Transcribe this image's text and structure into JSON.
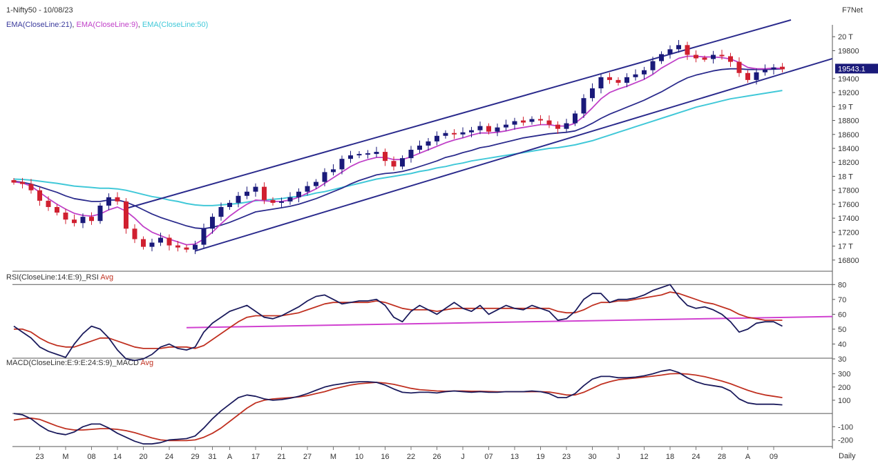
{
  "header": {
    "symbol": "1-Nifty50 - 10/08/23",
    "brand": "F7Net",
    "ema_legend": [
      {
        "text": "EMA(CloseLine:21)",
        "color": "#3a3a9c"
      },
      {
        "text": "EMA(CloseLine:9)",
        "color": "#c040c8"
      },
      {
        "text": "EMA(CloseLine:50)",
        "color": "#40c8d8"
      }
    ],
    "legend_sep": ", ",
    "rsi_title": "RSI(CloseLine:14:E:9)_RSI",
    "rsi_avg": "Avg",
    "macd_title": "MACD(CloseLine:E:9:E:24:S:9)_MACD",
    "macd_avg": "Avg",
    "period": "Daily"
  },
  "colors": {
    "up": "#1a1a7a",
    "down": "#d02030",
    "ema21": "#2a2a8c",
    "ema9": "#c040c8",
    "ema50": "#40c8d8",
    "channel": "#2a2a8c",
    "rsi": "#1a1a5c",
    "rsi_avg": "#c03020",
    "macd": "#1a1a5c",
    "macd_avg": "#c03020",
    "trend_rsi": "#d040d0",
    "price_tag_bg": "#1a1a7a"
  },
  "chart_data": [
    {
      "type": "candlestick",
      "panel": "price",
      "ylim": [
        16650,
        20150
      ],
      "yticks": [
        {
          "v": 20000,
          "t": "20 T"
        },
        {
          "v": 19800,
          "t": "19800"
        },
        {
          "v": 19400,
          "t": "19400"
        },
        {
          "v": 19200,
          "t": "19200"
        },
        {
          "v": 19000,
          "t": "19 T"
        },
        {
          "v": 18800,
          "t": "18800"
        },
        {
          "v": 18600,
          "t": "18600"
        },
        {
          "v": 18400,
          "t": "18400"
        },
        {
          "v": 18200,
          "t": "18200"
        },
        {
          "v": 18000,
          "t": "18 T"
        },
        {
          "v": 17800,
          "t": "17800"
        },
        {
          "v": 17600,
          "t": "17600"
        },
        {
          "v": 17400,
          "t": "17400"
        },
        {
          "v": 17200,
          "t": "17200"
        },
        {
          "v": 17000,
          "t": "17 T"
        },
        {
          "v": 16800,
          "t": "16800"
        }
      ],
      "last_price": "19543.1",
      "xticks": [
        {
          "i": 3,
          "t": "23"
        },
        {
          "i": 6,
          "t": "M"
        },
        {
          "i": 9,
          "t": "08"
        },
        {
          "i": 12,
          "t": "14"
        },
        {
          "i": 15,
          "t": "20"
        },
        {
          "i": 18,
          "t": "24"
        },
        {
          "i": 21,
          "t": "29"
        },
        {
          "i": 23,
          "t": "31"
        },
        {
          "i": 25,
          "t": "A"
        },
        {
          "i": 28,
          "t": "17"
        },
        {
          "i": 31,
          "t": "21"
        },
        {
          "i": 34,
          "t": "27"
        },
        {
          "i": 37,
          "t": "M"
        },
        {
          "i": 40,
          "t": "10"
        },
        {
          "i": 43,
          "t": "16"
        },
        {
          "i": 46,
          "t": "22"
        },
        {
          "i": 49,
          "t": "26"
        },
        {
          "i": 52,
          "t": "J"
        },
        {
          "i": 55,
          "t": "07"
        },
        {
          "i": 58,
          "t": "13"
        },
        {
          "i": 61,
          "t": "19"
        },
        {
          "i": 64,
          "t": "23"
        },
        {
          "i": 67,
          "t": "30"
        },
        {
          "i": 70,
          "t": "J"
        },
        {
          "i": 73,
          "t": "12"
        },
        {
          "i": 76,
          "t": "18"
        },
        {
          "i": 79,
          "t": "24"
        },
        {
          "i": 82,
          "t": "28"
        },
        {
          "i": 85,
          "t": "A"
        },
        {
          "i": 88,
          "t": "09"
        }
      ],
      "close": [
        17920,
        17890,
        17800,
        17650,
        17560,
        17480,
        17380,
        17330,
        17420,
        17360,
        17580,
        17700,
        17640,
        17250,
        17100,
        16990,
        17050,
        17120,
        17010,
        16980,
        16950,
        17020,
        17250,
        17420,
        17560,
        17620,
        17720,
        17780,
        17850,
        17660,
        17620,
        17640,
        17700,
        17780,
        17860,
        17920,
        18060,
        18100,
        18250,
        18300,
        18320,
        18320,
        18350,
        18220,
        18140,
        18260,
        18380,
        18440,
        18500,
        18580,
        18620,
        18600,
        18630,
        18660,
        18720,
        18640,
        18700,
        18740,
        18790,
        18780,
        18820,
        18800,
        18740,
        18680,
        18760,
        18900,
        19120,
        19260,
        19420,
        19380,
        19340,
        19420,
        19460,
        19520,
        19650,
        19750,
        19820,
        19880,
        19740,
        19690,
        19680,
        19740,
        19720,
        19640,
        19480,
        19380,
        19490,
        19530,
        19560,
        19543
      ],
      "ema9": [
        17920,
        17905,
        17860,
        17770,
        17680,
        17600,
        17530,
        17470,
        17440,
        17430,
        17460,
        17520,
        17560,
        17500,
        17400,
        17280,
        17200,
        17150,
        17100,
        17060,
        17020,
        17030,
        17100,
        17200,
        17320,
        17430,
        17520,
        17600,
        17660,
        17650,
        17640,
        17640,
        17660,
        17700,
        17760,
        17820,
        17900,
        17980,
        18060,
        18140,
        18200,
        18240,
        18270,
        18270,
        18240,
        18240,
        18280,
        18330,
        18380,
        18430,
        18480,
        18520,
        18550,
        18590,
        18620,
        18620,
        18630,
        18650,
        18680,
        18700,
        18720,
        18740,
        18740,
        18720,
        18720,
        18760,
        18860,
        18980,
        19110,
        19200,
        19250,
        19290,
        19340,
        19390,
        19460,
        19550,
        19620,
        19690,
        19720,
        19720,
        19710,
        19710,
        19700,
        19680,
        19630,
        19560,
        19540,
        19540,
        19550,
        19545
      ],
      "ema21": [
        17930,
        17915,
        17890,
        17850,
        17810,
        17770,
        17720,
        17680,
        17660,
        17640,
        17640,
        17660,
        17660,
        17630,
        17580,
        17520,
        17460,
        17410,
        17370,
        17330,
        17290,
        17260,
        17250,
        17270,
        17300,
        17340,
        17390,
        17440,
        17490,
        17510,
        17530,
        17550,
        17570,
        17600,
        17640,
        17680,
        17730,
        17780,
        17830,
        17890,
        17940,
        17980,
        18020,
        18040,
        18050,
        18070,
        18100,
        18140,
        18180,
        18220,
        18270,
        18300,
        18340,
        18370,
        18410,
        18430,
        18460,
        18490,
        18520,
        18550,
        18570,
        18590,
        18610,
        18620,
        18630,
        18650,
        18700,
        18760,
        18830,
        18890,
        18940,
        18990,
        19040,
        19090,
        19150,
        19210,
        19280,
        19350,
        19410,
        19450,
        19480,
        19510,
        19530,
        19540,
        19540,
        19530,
        19530,
        19530,
        19535,
        19540
      ],
      "ema50": [
        17960,
        17955,
        17945,
        17930,
        17915,
        17900,
        17880,
        17860,
        17850,
        17840,
        17830,
        17830,
        17820,
        17800,
        17770,
        17740,
        17710,
        17690,
        17660,
        17640,
        17610,
        17590,
        17580,
        17580,
        17590,
        17600,
        17610,
        17630,
        17650,
        17660,
        17670,
        17680,
        17700,
        17710,
        17730,
        17760,
        17780,
        17810,
        17840,
        17870,
        17900,
        17930,
        17960,
        17980,
        18000,
        18020,
        18040,
        18070,
        18090,
        18120,
        18140,
        18170,
        18190,
        18220,
        18240,
        18260,
        18280,
        18300,
        18320,
        18340,
        18360,
        18380,
        18400,
        18410,
        18430,
        18450,
        18480,
        18510,
        18550,
        18590,
        18630,
        18670,
        18710,
        18750,
        18790,
        18830,
        18870,
        18910,
        18950,
        18990,
        19020,
        19050,
        19080,
        19110,
        19130,
        19150,
        19170,
        19190,
        19210,
        19230
      ],
      "channel_upper": [
        [
          13,
          17540
        ],
        [
          90,
          20240
        ]
      ],
      "channel_lower": [
        [
          21,
          16930
        ],
        [
          100,
          19880
        ]
      ]
    },
    {
      "type": "line",
      "panel": "rsi",
      "ylim": [
        30,
        82
      ],
      "yticks": [
        80,
        70,
        60,
        50,
        40,
        30
      ],
      "series": [
        {
          "name": "RSI",
          "values": [
            52,
            48,
            44,
            38,
            35,
            33,
            31,
            40,
            47,
            52,
            50,
            44,
            36,
            30,
            29,
            30,
            33,
            38,
            40,
            37,
            36,
            38,
            48,
            54,
            58,
            62,
            64,
            66,
            62,
            58,
            57,
            59,
            62,
            65,
            69,
            72,
            73,
            70,
            67,
            68,
            69,
            69,
            70,
            66,
            58,
            55,
            62,
            66,
            63,
            60,
            64,
            68,
            64,
            62,
            66,
            60,
            63,
            66,
            64,
            63,
            66,
            64,
            62,
            56,
            57,
            62,
            70,
            74,
            74,
            68,
            70,
            70,
            71,
            73,
            76,
            78,
            80,
            72,
            66,
            64,
            65,
            63,
            60,
            55,
            48,
            50,
            54,
            55,
            55,
            52
          ]
        },
        {
          "name": "Avg",
          "values": [
            50,
            50,
            48,
            44,
            41,
            39,
            38,
            38,
            40,
            42,
            44,
            44,
            42,
            40,
            38,
            37,
            37,
            37,
            38,
            38,
            38,
            37,
            39,
            43,
            47,
            51,
            55,
            58,
            59,
            59,
            59,
            59,
            60,
            61,
            63,
            65,
            67,
            68,
            68,
            68,
            68,
            68,
            69,
            68,
            66,
            64,
            63,
            63,
            63,
            62,
            63,
            64,
            64,
            64,
            64,
            64,
            64,
            64,
            64,
            64,
            64,
            64,
            64,
            62,
            61,
            61,
            63,
            66,
            68,
            68,
            69,
            69,
            70,
            71,
            72,
            73,
            75,
            74,
            72,
            70,
            68,
            67,
            65,
            63,
            60,
            58,
            57,
            56,
            56,
            56
          ]
        }
      ],
      "trendline": [
        [
          20,
          51
        ],
        [
          100,
          59
        ]
      ]
    },
    {
      "type": "line",
      "panel": "macd",
      "ylim": [
        -250,
        350
      ],
      "yticks": [
        {
          "v": 300,
          "t": "300"
        },
        {
          "v": 200,
          "t": "200"
        },
        {
          "v": 100,
          "t": "100"
        },
        {
          "v": -100,
          "t": "-100"
        },
        {
          "v": -200,
          "t": "-200"
        }
      ],
      "series": [
        {
          "name": "MACD",
          "values": [
            0,
            -10,
            -40,
            -90,
            -130,
            -150,
            -160,
            -140,
            -100,
            -80,
            -80,
            -110,
            -150,
            -180,
            -210,
            -230,
            -230,
            -220,
            -200,
            -195,
            -190,
            -170,
            -110,
            -40,
            20,
            70,
            120,
            140,
            130,
            110,
            100,
            105,
            115,
            130,
            150,
            175,
            200,
            215,
            225,
            235,
            240,
            240,
            235,
            215,
            185,
            160,
            155,
            160,
            160,
            155,
            165,
            170,
            165,
            160,
            165,
            160,
            160,
            165,
            165,
            165,
            170,
            165,
            150,
            120,
            120,
            150,
            210,
            260,
            280,
            280,
            270,
            270,
            275,
            285,
            300,
            320,
            330,
            310,
            270,
            240,
            220,
            210,
            200,
            170,
            110,
            80,
            70,
            70,
            70,
            65
          ]
        },
        {
          "name": "Avg",
          "values": [
            -50,
            -40,
            -35,
            -45,
            -70,
            -95,
            -115,
            -125,
            -125,
            -120,
            -115,
            -115,
            -120,
            -130,
            -145,
            -165,
            -185,
            -200,
            -205,
            -205,
            -205,
            -200,
            -180,
            -150,
            -110,
            -60,
            -10,
            40,
            80,
            100,
            110,
            115,
            120,
            125,
            135,
            150,
            165,
            185,
            200,
            215,
            225,
            230,
            235,
            230,
            220,
            205,
            190,
            180,
            175,
            170,
            168,
            170,
            170,
            168,
            168,
            166,
            164,
            164,
            164,
            164,
            165,
            165,
            162,
            152,
            140,
            140,
            160,
            190,
            220,
            240,
            255,
            262,
            268,
            275,
            282,
            290,
            300,
            302,
            298,
            290,
            278,
            262,
            245,
            225,
            200,
            175,
            155,
            140,
            130,
            120
          ]
        }
      ]
    }
  ]
}
